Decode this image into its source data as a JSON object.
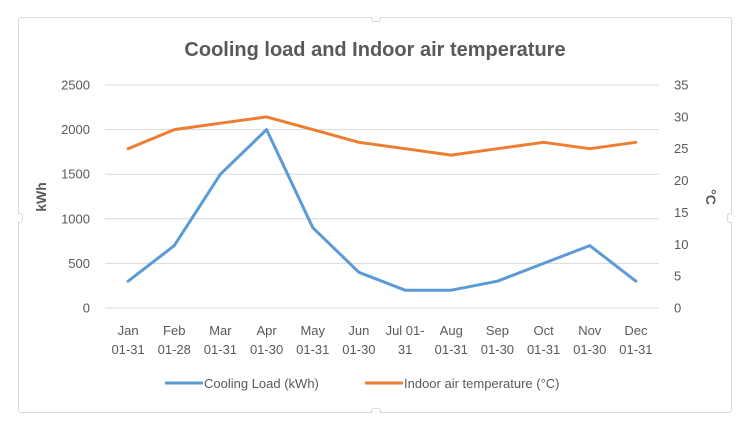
{
  "chart_data": {
    "type": "line",
    "title": "Cooling load and Indoor air temperature",
    "categories": [
      [
        "Jan",
        "01-31"
      ],
      [
        "Feb",
        "01-28"
      ],
      [
        "Mar",
        "01-31"
      ],
      [
        "Apr",
        "01-30"
      ],
      [
        "May",
        "01-31"
      ],
      [
        "Jun",
        "01-30"
      ],
      [
        "Jul 01-",
        "31"
      ],
      [
        "Aug",
        "01-31"
      ],
      [
        "Sep",
        "01-30"
      ],
      [
        "Oct",
        "01-31"
      ],
      [
        "Nov",
        "01-30"
      ],
      [
        "Dec",
        "01-31"
      ]
    ],
    "series": [
      {
        "name": "Cooling Load (kWh)",
        "axis": "left",
        "color": "#5B9BD5",
        "values": [
          300,
          700,
          1500,
          2000,
          900,
          400,
          200,
          200,
          300,
          500,
          700,
          300
        ]
      },
      {
        "name": "Indoor air temperature (°C)",
        "axis": "right",
        "color": "#ED7D31",
        "values": [
          25,
          28,
          29,
          30,
          28,
          26,
          25,
          24,
          25,
          26,
          25,
          26
        ]
      }
    ],
    "y_left": {
      "label": "kWh",
      "ylim": [
        0,
        2500
      ],
      "ticks": [
        0,
        500,
        1000,
        1500,
        2000,
        2500
      ]
    },
    "y_right": {
      "label": "°C",
      "ylim": [
        0,
        35
      ],
      "ticks": [
        0,
        5,
        10,
        15,
        20,
        25,
        30,
        35
      ]
    },
    "xlabel": "",
    "grid": true,
    "legend_position": "bottom"
  }
}
